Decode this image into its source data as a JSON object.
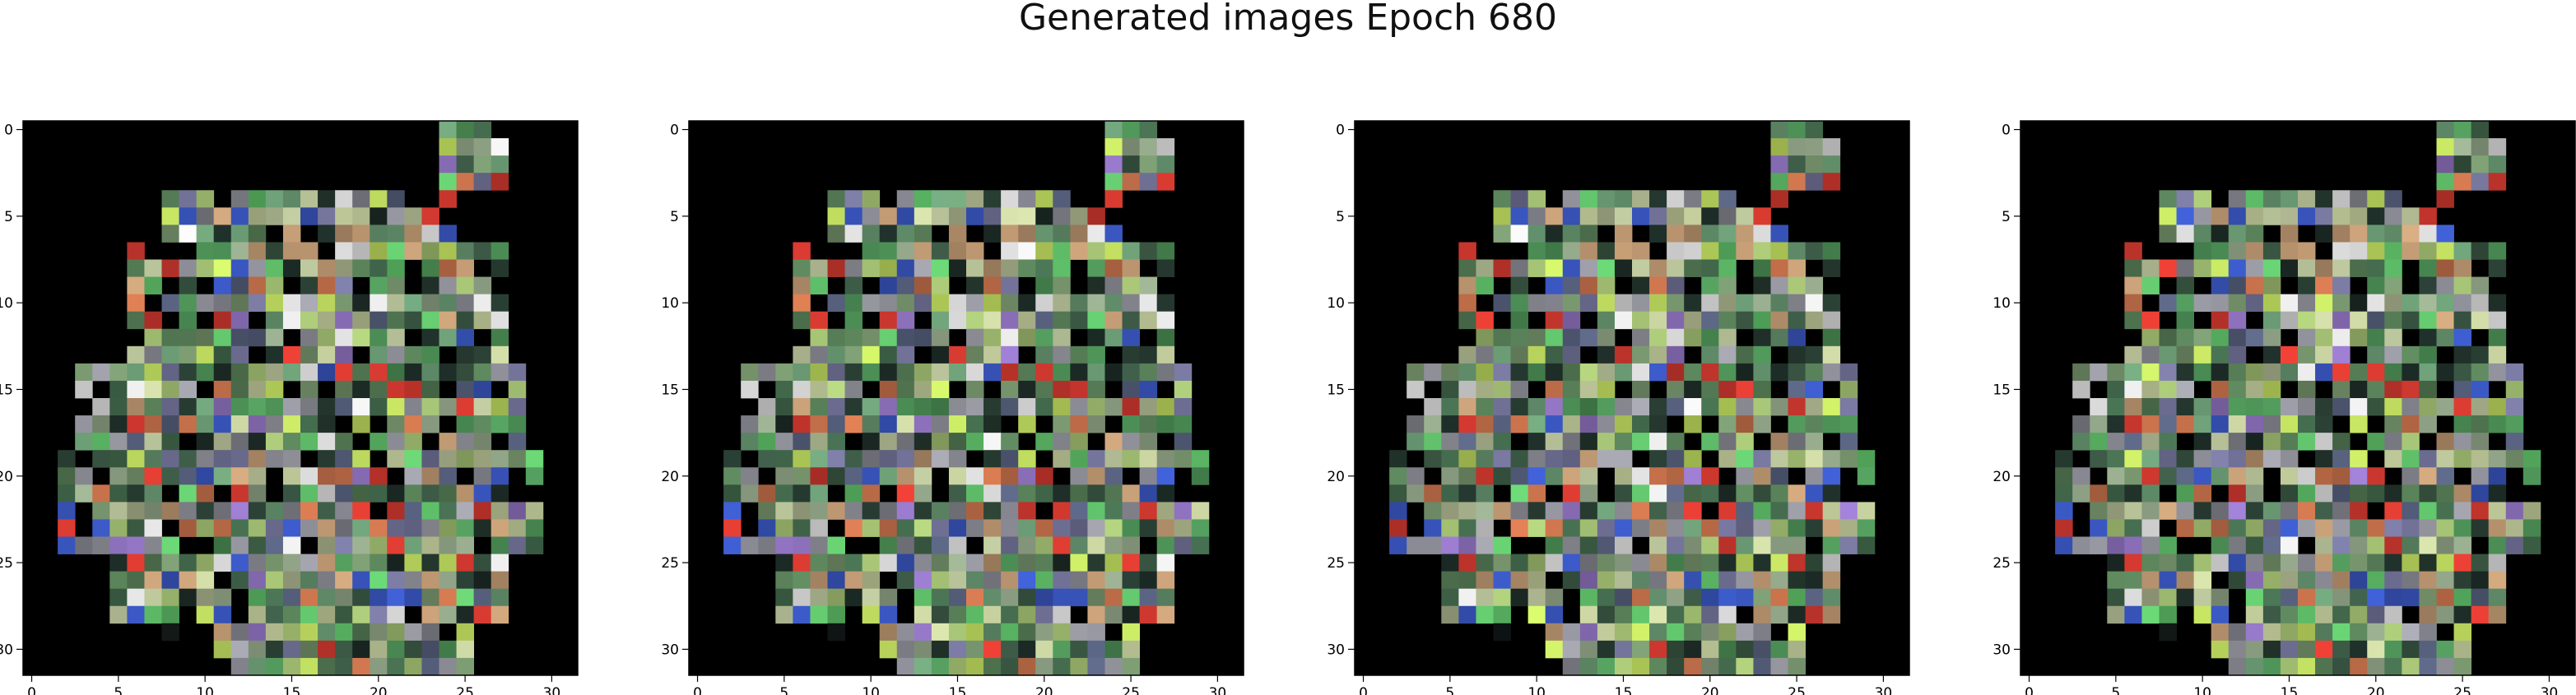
{
  "figure": {
    "title": "Generated images Epoch 680"
  },
  "chart_data": [
    {
      "type": "heatmap",
      "title": "",
      "xlabel": "",
      "ylabel": "",
      "grid_size": 32,
      "xlim": [
        -0.5,
        31.5
      ],
      "ylim": [
        31.5,
        -0.5
      ],
      "x_ticks": [
        0,
        5,
        10,
        15,
        20,
        25,
        30
      ],
      "y_ticks": [
        0,
        5,
        10,
        15,
        20,
        25,
        30
      ],
      "x_tick_labels": [
        "0",
        "5",
        "10",
        "15",
        "20",
        "25",
        "30"
      ],
      "y_tick_labels": [
        "0",
        "5",
        "10",
        "15",
        "20",
        "25",
        "30"
      ],
      "seed": 680
    },
    {
      "type": "heatmap",
      "title": "",
      "xlabel": "",
      "ylabel": "",
      "grid_size": 32,
      "xlim": [
        -0.5,
        31.5
      ],
      "ylim": [
        31.5,
        -0.5
      ],
      "x_ticks": [
        0,
        5,
        10,
        15,
        20,
        25,
        30
      ],
      "y_ticks": [
        0,
        5,
        10,
        15,
        20,
        25,
        30
      ],
      "x_tick_labels": [
        "0",
        "5",
        "10",
        "15",
        "20",
        "25",
        "30"
      ],
      "y_tick_labels": [
        "0",
        "5",
        "10",
        "15",
        "20",
        "25",
        "30"
      ],
      "seed": 681
    },
    {
      "type": "heatmap",
      "title": "",
      "xlabel": "",
      "ylabel": "",
      "grid_size": 32,
      "xlim": [
        -0.5,
        31.5
      ],
      "ylim": [
        31.5,
        -0.5
      ],
      "x_ticks": [
        0,
        5,
        10,
        15,
        20,
        25,
        30
      ],
      "y_ticks": [
        0,
        5,
        10,
        15,
        20,
        25,
        30
      ],
      "x_tick_labels": [
        "0",
        "5",
        "10",
        "15",
        "20",
        "25",
        "30"
      ],
      "y_tick_labels": [
        "0",
        "5",
        "10",
        "15",
        "20",
        "25",
        "30"
      ],
      "seed": 682
    },
    {
      "type": "heatmap",
      "title": "",
      "xlabel": "",
      "ylabel": "",
      "grid_size": 32,
      "xlim": [
        -0.5,
        31.5
      ],
      "ylim": [
        31.5,
        -0.5
      ],
      "x_ticks": [
        0,
        5,
        10,
        15,
        20,
        25,
        30
      ],
      "y_ticks": [
        0,
        5,
        10,
        15,
        20,
        25,
        30
      ],
      "x_tick_labels": [
        "0",
        "5",
        "10",
        "15",
        "20",
        "25",
        "30"
      ],
      "y_tick_labels": [
        "0",
        "5",
        "10",
        "15",
        "20",
        "25",
        "30"
      ],
      "seed": 683
    }
  ]
}
